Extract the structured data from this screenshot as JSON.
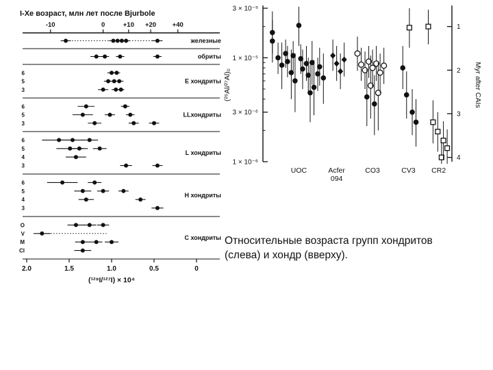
{
  "colors": {
    "ink": "#111111",
    "background": "#ffffff"
  },
  "caption": {
    "line1": "Относительные возраста групп хондритов",
    "line2": "(слева) и хондр (вверху)."
  },
  "chart_data": [
    {
      "type": "scatter",
      "id": "ixe-ages",
      "title": "I-Xe возраст,  млн лет после Bjurbole",
      "xlabel": "(¹²⁹I/¹²⁷I) × 10⁴",
      "x_range": [
        2.0,
        0.0
      ],
      "x_ticks": [
        "2.0",
        "1.5",
        "1.0",
        "0.5",
        "0"
      ],
      "x_tick_values": [
        2.0,
        1.5,
        1.0,
        0.5,
        0
      ],
      "top_axis_ticks": [
        {
          "label": "-10",
          "x": 1.72
        },
        {
          "label": "0",
          "x": 1.1
        },
        {
          "label": "+10",
          "x": 0.8
        },
        {
          "label": "+20",
          "x": 0.54
        },
        {
          "label": "+40",
          "x": 0.22
        }
      ],
      "groups": [
        {
          "label": "железные",
          "rows": [
            {
              "label": "",
              "dotted": [
                1.5,
                0.48
              ],
              "points": [
                {
                  "x": 1.54,
                  "e": 0.06
                },
                {
                  "x": 0.98,
                  "e": 0.05
                },
                {
                  "x": 0.93,
                  "e": 0.04
                },
                {
                  "x": 0.88,
                  "e": 0.04
                },
                {
                  "x": 0.83,
                  "e": 0.05
                },
                {
                  "x": 0.46,
                  "e": 0.06
                }
              ]
            }
          ]
        },
        {
          "label": "обриты",
          "rows": [
            {
              "label": "",
              "points": [
                {
                  "x": 1.18,
                  "e": 0.07
                },
                {
                  "x": 1.08,
                  "e": 0.05
                },
                {
                  "x": 0.9,
                  "e": 0.05
                },
                {
                  "x": 0.46,
                  "e": 0.05
                }
              ]
            }
          ]
        },
        {
          "label": "Е хондриты",
          "rows": [
            {
              "label": "6",
              "points": [
                {
                  "x": 1.0,
                  "e": 0.05
                },
                {
                  "x": 0.94,
                  "e": 0.04
                }
              ]
            },
            {
              "label": "5",
              "points": [
                {
                  "x": 1.04,
                  "e": 0.05
                },
                {
                  "x": 0.97,
                  "e": 0.04
                },
                {
                  "x": 0.91,
                  "e": 0.05
                }
              ]
            },
            {
              "label": "3",
              "points": [
                {
                  "x": 1.1,
                  "e": 0.06
                },
                {
                  "x": 0.95,
                  "e": 0.05
                },
                {
                  "x": 0.89,
                  "e": 0.04
                }
              ]
            }
          ]
        },
        {
          "label": "LLхондриты",
          "rows": [
            {
              "label": "6",
              "points": [
                {
                  "x": 1.3,
                  "e": 0.1
                },
                {
                  "x": 0.84,
                  "e": 0.05
                }
              ]
            },
            {
              "label": "5",
              "points": [
                {
                  "x": 1.34,
                  "e": 0.12
                },
                {
                  "x": 1.02,
                  "e": 0.06
                },
                {
                  "x": 0.78,
                  "e": 0.05
                }
              ]
            },
            {
              "label": "3",
              "points": [
                {
                  "x": 1.2,
                  "e": 0.08
                },
                {
                  "x": 0.74,
                  "e": 0.06
                },
                {
                  "x": 0.5,
                  "e": 0.06
                }
              ]
            }
          ]
        },
        {
          "label": "L хондриты",
          "rows": [
            {
              "label": "6",
              "points": [
                {
                  "x": 1.62,
                  "e": 0.2
                },
                {
                  "x": 1.46,
                  "e": 0.14
                },
                {
                  "x": 1.26,
                  "e": 0.1
                }
              ]
            },
            {
              "label": "5",
              "points": [
                {
                  "x": 1.49,
                  "e": 0.16
                },
                {
                  "x": 1.38,
                  "e": 0.1
                },
                {
                  "x": 1.14,
                  "e": 0.08
                }
              ]
            },
            {
              "label": "4",
              "points": [
                {
                  "x": 1.42,
                  "e": 0.12
                }
              ]
            },
            {
              "label": "3",
              "points": [
                {
                  "x": 0.83,
                  "e": 0.07
                },
                {
                  "x": 0.46,
                  "e": 0.06
                }
              ]
            }
          ]
        },
        {
          "label": "Н хондриты",
          "rows": [
            {
              "label": "6",
              "points": [
                {
                  "x": 1.58,
                  "e": 0.18
                },
                {
                  "x": 1.2,
                  "e": 0.08
                }
              ]
            },
            {
              "label": "5",
              "points": [
                {
                  "x": 1.34,
                  "e": 0.1
                },
                {
                  "x": 1.1,
                  "e": 0.07
                },
                {
                  "x": 0.86,
                  "e": 0.06
                }
              ]
            },
            {
              "label": "4",
              "points": [
                {
                  "x": 1.3,
                  "e": 0.09
                },
                {
                  "x": 0.66,
                  "e": 0.06
                }
              ]
            },
            {
              "label": "3",
              "points": [
                {
                  "x": 0.46,
                  "e": 0.07
                }
              ]
            }
          ]
        },
        {
          "label": "С хондриты",
          "rows": [
            {
              "label": "O",
              "points": [
                {
                  "x": 1.42,
                  "e": 0.1
                },
                {
                  "x": 1.26,
                  "e": 0.08
                },
                {
                  "x": 1.1,
                  "e": 0.07
                }
              ]
            },
            {
              "label": "V",
              "dotted": [
                1.78,
                1.06
              ],
              "points": [
                {
                  "x": 1.82,
                  "e": 0.1
                }
              ]
            },
            {
              "label": "M",
              "points": [
                {
                  "x": 1.34,
                  "e": 0.09
                },
                {
                  "x": 1.18,
                  "e": 0.07
                },
                {
                  "x": 1.0,
                  "e": 0.08
                }
              ]
            },
            {
              "label": "CI",
              "points": [
                {
                  "x": 1.34,
                  "e": 0.1
                }
              ]
            }
          ]
        }
      ]
    },
    {
      "type": "scatter",
      "id": "al-mg-chondrules",
      "ylabel": "(²⁶Al/²⁷Al)₀",
      "ylabel_right": "Myr after CAIs",
      "y_scale": "log",
      "y_range": [
        3e-05,
        1e-06
      ],
      "y_ticks": [
        {
          "label": "3 × 10⁻⁵",
          "v": 3e-05
        },
        {
          "label": "1 × 10⁻⁵",
          "v": 1e-05
        },
        {
          "label": "3 × 10⁻⁶",
          "v": 3e-06
        },
        {
          "label": "1 × 10⁻⁶",
          "v": 1e-06
        }
      ],
      "y_minor": [
        2e-05,
        9e-06,
        8e-06,
        7e-06,
        6e-06,
        5e-06,
        4e-06,
        2e-06
      ],
      "right_ticks": [
        {
          "label": "1",
          "v": 2e-05
        },
        {
          "label": "2",
          "v": 7.6e-06
        },
        {
          "label": "3",
          "v": 2.9e-06
        },
        {
          "label": "4",
          "v": 1.1e-06
        }
      ],
      "categories": [
        {
          "label": "UOC",
          "x": 0.19
        },
        {
          "label": "Acfer 094",
          "x": 0.39
        },
        {
          "label": "CO3",
          "x": 0.58
        },
        {
          "label": "CV3",
          "x": 0.77
        },
        {
          "label": "CR2",
          "x": 0.93
        }
      ],
      "series": [
        {
          "name": "UOC",
          "marker": "circle-filled",
          "points": [
            {
              "x": 0.05,
              "v": 1.75e-05,
              "lo": 1.1e-05,
              "hi": 2.8e-05
            },
            {
              "x": 0.05,
              "v": 1.45e-05,
              "lo": 9e-06,
              "hi": 2.3e-05
            },
            {
              "x": 0.08,
              "v": 1e-05,
              "lo": 7e-06,
              "hi": 1.4e-05
            },
            {
              "x": 0.1,
              "v": 8.5e-06,
              "lo": 5e-06,
              "hi": 1.4e-05
            },
            {
              "x": 0.12,
              "v": 1.1e-05,
              "lo": 8e-06,
              "hi": 1.5e-05
            },
            {
              "x": 0.13,
              "v": 9.2e-06,
              "lo": 6.5e-06,
              "hi": 1.3e-05
            },
            {
              "x": 0.15,
              "v": 7.2e-06,
              "lo": 4e-06,
              "hi": 1.2e-05
            },
            {
              "x": 0.16,
              "v": 1.05e-05,
              "lo": 7.5e-06,
              "hi": 1.45e-05
            },
            {
              "x": 0.17,
              "v": 6e-06,
              "lo": 3e-06,
              "hi": 1.1e-05
            },
            {
              "x": 0.19,
              "v": 2.05e-05,
              "lo": 1.3e-05,
              "hi": 3.1e-05
            },
            {
              "x": 0.2,
              "v": 9.8e-06,
              "lo": 7e-06,
              "hi": 1.35e-05
            },
            {
              "x": 0.21,
              "v": 7.8e-06,
              "lo": 5e-06,
              "hi": 1.2e-05
            },
            {
              "x": 0.23,
              "v": 8.8e-06,
              "lo": 6e-06,
              "hi": 1.3e-05
            },
            {
              "x": 0.24,
              "v": 6.8e-06,
              "lo": 4.5e-06,
              "hi": 1e-05
            },
            {
              "x": 0.25,
              "v": 4.6e-06,
              "lo": 2.4e-06,
              "hi": 8.6e-06
            },
            {
              "x": 0.26,
              "v": 9e-06,
              "lo": 5.5e-06,
              "hi": 1.45e-05
            },
            {
              "x": 0.27,
              "v": 5.2e-06,
              "lo": 2.8e-06,
              "hi": 9.5e-06
            },
            {
              "x": 0.29,
              "v": 7e-06,
              "lo": 4.8e-06,
              "hi": 1e-05
            },
            {
              "x": 0.3,
              "v": 8.2e-06,
              "lo": 5.4e-06,
              "hi": 1.25e-05
            },
            {
              "x": 0.32,
              "v": 6.4e-06,
              "lo": 3.6e-06,
              "hi": 1.1e-05
            }
          ]
        },
        {
          "name": "Acfer 094",
          "marker": "diamond-filled",
          "points": [
            {
              "x": 0.37,
              "v": 1.05e-05,
              "lo": 7.5e-06,
              "hi": 1.5e-05
            },
            {
              "x": 0.39,
              "v": 8.8e-06,
              "lo": 6e-06,
              "hi": 1.3e-05
            },
            {
              "x": 0.41,
              "v": 7.4e-06,
              "lo": 5e-06,
              "hi": 1.1e-05
            },
            {
              "x": 0.43,
              "v": 9.6e-06,
              "lo": 6.6e-06,
              "hi": 1.4e-05
            }
          ]
        },
        {
          "name": "CO3",
          "marker": "circle-open",
          "points": [
            {
              "x": 0.5,
              "v": 1.1e-05,
              "lo": 7.5e-06,
              "hi": 1.6e-05
            },
            {
              "x": 0.52,
              "v": 8.6e-06,
              "lo": 6e-06,
              "hi": 1.25e-05
            },
            {
              "x": 0.54,
              "v": 7.6e-06,
              "lo": 5e-06,
              "hi": 1.15e-05
            },
            {
              "x": 0.56,
              "v": 9.2e-06,
              "lo": 6.4e-06,
              "hi": 1.3e-05
            },
            {
              "x": 0.57,
              "v": 5.4e-06,
              "lo": 2.6e-06,
              "hi": 1.05e-05
            },
            {
              "x": 0.58,
              "v": 8e-06,
              "lo": 5.2e-06,
              "hi": 1.2e-05
            },
            {
              "x": 0.6,
              "v": 8.8e-06,
              "lo": 6e-06,
              "hi": 1.3e-05
            },
            {
              "x": 0.61,
              "v": 4.6e-06,
              "lo": 2e-06,
              "hi": 9e-06
            },
            {
              "x": 0.62,
              "v": 7.2e-06,
              "lo": 4.6e-06,
              "hi": 1.1e-05
            },
            {
              "x": 0.64,
              "v": 8.4e-06,
              "lo": 5.6e-06,
              "hi": 1.25e-05
            }
          ]
        },
        {
          "name": "CO3 filled",
          "marker": "circle-filled",
          "points": [
            {
              "x": 0.55,
              "v": 4.2e-06,
              "lo": 2.2e-06,
              "hi": 7.8e-06
            },
            {
              "x": 0.59,
              "v": 3.6e-06,
              "lo": 1.8e-06,
              "hi": 6.8e-06
            }
          ]
        },
        {
          "name": "CV3",
          "marker": "circle-filled",
          "points": [
            {
              "x": 0.74,
              "v": 8e-06,
              "lo": 5e-06,
              "hi": 1.3e-05
            },
            {
              "x": 0.76,
              "v": 4.4e-06,
              "lo": 2.6e-06,
              "hi": 7.4e-06
            },
            {
              "x": 0.79,
              "v": 3e-06,
              "lo": 1.8e-06,
              "hi": 5e-06
            },
            {
              "x": 0.81,
              "v": 2.4e-06,
              "lo": 1.4e-06,
              "hi": 4e-06
            }
          ]
        },
        {
          "name": "CR2",
          "marker": "square-open",
          "points": [
            {
              "x": 0.775,
              "v": 1.95e-05,
              "lo": 1.25e-05,
              "hi": 3e-05
            },
            {
              "x": 0.875,
              "v": 2e-05,
              "lo": 1.35e-05,
              "hi": 2.9e-05
            },
            {
              "x": 0.9,
              "v": 2.4e-06,
              "lo": 1.5e-06,
              "hi": 3.9e-06
            },
            {
              "x": 0.925,
              "v": 1.95e-06,
              "lo": 1.25e-06,
              "hi": 3e-06
            },
            {
              "x": 0.945,
              "v": 1.1e-06,
              "lo": 7.5e-07,
              "hi": 1.6e-06
            },
            {
              "x": 0.955,
              "v": 1.6e-06,
              "lo": 1.05e-06,
              "hi": 2.45e-06
            },
            {
              "x": 0.975,
              "v": 1.35e-06,
              "lo": 9e-07,
              "hi": 2.05e-06
            }
          ]
        }
      ]
    }
  ]
}
